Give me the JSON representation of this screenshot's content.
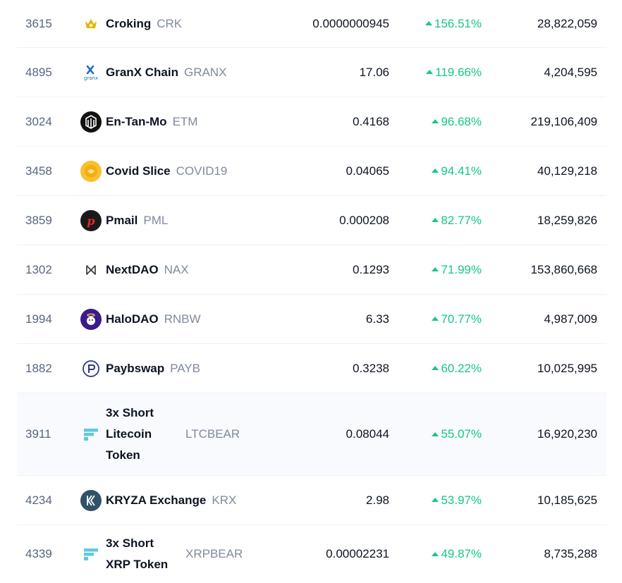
{
  "rows": [
    {
      "rank": "3615",
      "name": "Croking",
      "symbol": "CRK",
      "price": "0.0000000945",
      "change": "156.51%",
      "volume": "28,822,059",
      "icon": "croking-logo-icon"
    },
    {
      "rank": "4895",
      "name": "GranX Chain",
      "symbol": "GRANX",
      "price": "17.06",
      "change": "119.66%",
      "volume": "4,204,595",
      "icon": "granx-logo-icon"
    },
    {
      "rank": "3024",
      "name": "En-Tan-Mo",
      "symbol": "ETM",
      "price": "0.4168",
      "change": "96.68%",
      "volume": "219,106,409",
      "icon": "entanmo-logo-icon"
    },
    {
      "rank": "3458",
      "name": "Covid Slice",
      "symbol": "COVID19",
      "price": "0.04065",
      "change": "94.41%",
      "volume": "40,129,218",
      "icon": "covidslice-logo-icon"
    },
    {
      "rank": "3859",
      "name": "Pmail",
      "symbol": "PML",
      "price": "0.000208",
      "change": "82.77%",
      "volume": "18,259,826",
      "icon": "pmail-logo-icon"
    },
    {
      "rank": "1302",
      "name": "NextDAO",
      "symbol": "NAX",
      "price": "0.1293",
      "change": "71.99%",
      "volume": "153,860,668",
      "icon": "nextdao-logo-icon"
    },
    {
      "rank": "1994",
      "name": "HaloDAO",
      "symbol": "RNBW",
      "price": "6.33",
      "change": "70.77%",
      "volume": "4,987,009",
      "icon": "halodao-logo-icon"
    },
    {
      "rank": "1882",
      "name": "Paybswap",
      "symbol": "PAYB",
      "price": "0.3238",
      "change": "60.22%",
      "volume": "10,025,995",
      "icon": "paybswap-logo-icon"
    },
    {
      "rank": "3911",
      "name": "3x Short Litecoin Token",
      "symbol": "LTCBEAR",
      "price": "0.08044",
      "change": "55.07%",
      "volume": "16,920,230",
      "icon": "ftx-logo-icon"
    },
    {
      "rank": "4234",
      "name": "KRYZA Exchange",
      "symbol": "KRX",
      "price": "2.98",
      "change": "53.97%",
      "volume": "10,185,625",
      "icon": "kryza-logo-icon"
    },
    {
      "rank": "4339",
      "name": "3x Short XRP Token",
      "symbol": "XRPBEAR",
      "price": "0.00002231",
      "change": "49.87%",
      "volume": "8,735,288",
      "icon": "ftx-logo-icon"
    }
  ],
  "colors": {
    "positive": "#16c784",
    "muted": "#808a9d",
    "text": "#0d1421",
    "divider": "#eff2f5",
    "highlight": "#f8fafd"
  }
}
